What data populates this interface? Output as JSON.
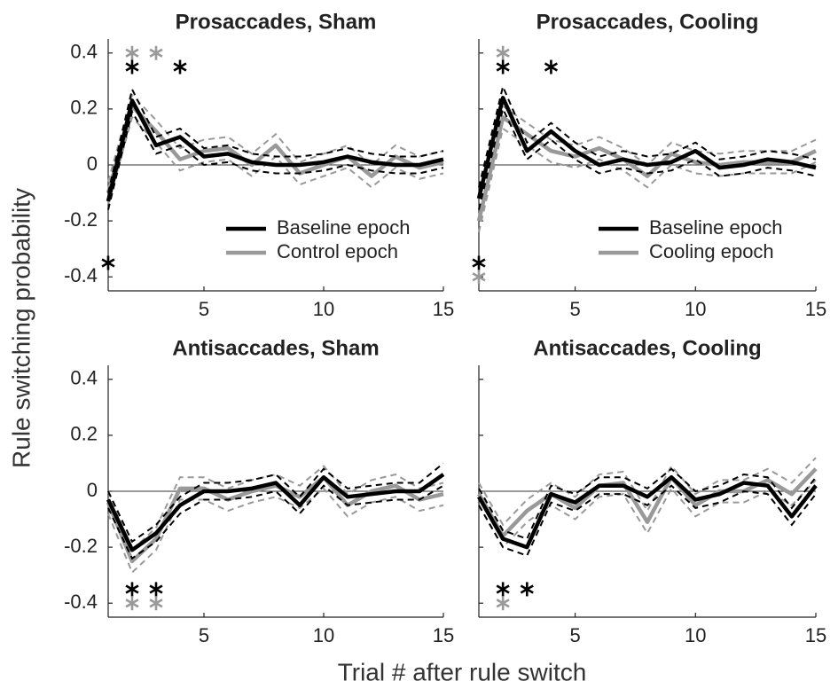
{
  "xlabel": "Trial # after rule switch",
  "ylabel": "Rule switching probability",
  "chart_data": [
    {
      "type": "line",
      "title": "Prosaccades, Sham",
      "x": [
        1,
        2,
        3,
        4,
        5,
        6,
        7,
        8,
        9,
        10,
        11,
        12,
        13,
        14,
        15
      ],
      "xlim": [
        1,
        15
      ],
      "xticks": [
        5,
        10,
        15
      ],
      "ylim": [
        -0.45,
        0.45
      ],
      "yticks": [
        -0.4,
        -0.2,
        0,
        0.2,
        0.4
      ],
      "show_ytick_labels": true,
      "legend": "lower right",
      "series": [
        {
          "name": "Baseline epoch",
          "color": "#000000",
          "values": [
            -0.13,
            0.23,
            0.07,
            0.1,
            0.03,
            0.04,
            0.01,
            0.0,
            0.0,
            0.01,
            0.03,
            0.01,
            0.0,
            0.0,
            0.02
          ],
          "errors": [
            0.03,
            0.04,
            0.03,
            0.03,
            0.03,
            0.03,
            0.03,
            0.03,
            0.03,
            0.03,
            0.03,
            0.03,
            0.03,
            0.03,
            0.03
          ]
        },
        {
          "name": "Control epoch",
          "color": "#999999",
          "values": [
            -0.1,
            0.21,
            0.12,
            0.02,
            0.05,
            0.06,
            0.0,
            0.07,
            -0.03,
            0.0,
            0.03,
            -0.04,
            0.03,
            -0.01,
            0.01
          ],
          "errors": [
            0.04,
            0.04,
            0.04,
            0.04,
            0.04,
            0.04,
            0.04,
            0.04,
            0.04,
            0.04,
            0.04,
            0.04,
            0.04,
            0.04,
            0.04
          ]
        }
      ],
      "markers": [
        {
          "x": 2,
          "y": 0.4,
          "color": "#999999"
        },
        {
          "x": 3,
          "y": 0.4,
          "color": "#999999"
        },
        {
          "x": 2,
          "y": 0.35,
          "color": "#000000"
        },
        {
          "x": 4,
          "y": 0.35,
          "color": "#000000"
        },
        {
          "x": 1,
          "y": -0.35,
          "color": "#000000"
        }
      ]
    },
    {
      "type": "line",
      "title": "Prosaccades, Cooling",
      "x": [
        1,
        2,
        3,
        4,
        5,
        6,
        7,
        8,
        9,
        10,
        11,
        12,
        13,
        14,
        15
      ],
      "xlim": [
        1,
        15
      ],
      "xticks": [
        5,
        10,
        15
      ],
      "ylim": [
        -0.45,
        0.45
      ],
      "yticks": [
        -0.4,
        -0.2,
        0,
        0.2,
        0.4
      ],
      "show_ytick_labels": false,
      "legend": "lower right",
      "series": [
        {
          "name": "Baseline epoch",
          "color": "#000000",
          "values": [
            -0.12,
            0.24,
            0.05,
            0.12,
            0.05,
            0.0,
            0.02,
            0.0,
            0.01,
            0.05,
            -0.01,
            0.0,
            0.02,
            0.01,
            -0.01
          ],
          "errors": [
            0.04,
            0.04,
            0.03,
            0.03,
            0.03,
            0.03,
            0.03,
            0.03,
            0.03,
            0.03,
            0.03,
            0.03,
            0.03,
            0.03,
            0.03
          ]
        },
        {
          "name": "Cooling epoch",
          "color": "#999999",
          "values": [
            -0.2,
            0.17,
            0.11,
            0.05,
            0.03,
            0.06,
            0.02,
            -0.04,
            0.04,
            0.01,
            0.0,
            0.01,
            0.01,
            0.01,
            0.05
          ],
          "errors": [
            0.04,
            0.04,
            0.04,
            0.04,
            0.04,
            0.04,
            0.04,
            0.04,
            0.04,
            0.04,
            0.04,
            0.04,
            0.04,
            0.04,
            0.04
          ]
        }
      ],
      "markers": [
        {
          "x": 2,
          "y": 0.4,
          "color": "#999999"
        },
        {
          "x": 2,
          "y": 0.35,
          "color": "#000000"
        },
        {
          "x": 4,
          "y": 0.35,
          "color": "#000000"
        },
        {
          "x": 1,
          "y": -0.35,
          "color": "#000000"
        },
        {
          "x": 1,
          "y": -0.4,
          "color": "#999999"
        }
      ]
    },
    {
      "type": "line",
      "title": "Antisaccades, Sham",
      "x": [
        1,
        2,
        3,
        4,
        5,
        6,
        7,
        8,
        9,
        10,
        11,
        12,
        13,
        14,
        15
      ],
      "xlim": [
        1,
        15
      ],
      "xticks": [
        5,
        10,
        15
      ],
      "ylim": [
        -0.45,
        0.45
      ],
      "yticks": [
        -0.4,
        -0.2,
        0,
        0.2,
        0.4
      ],
      "show_ytick_labels": true,
      "series": [
        {
          "color": "#000000",
          "values": [
            -0.03,
            -0.21,
            -0.15,
            -0.05,
            0.0,
            0.0,
            0.01,
            0.03,
            -0.05,
            0.05,
            -0.02,
            -0.01,
            0.0,
            0.0,
            0.06
          ],
          "errors": [
            0.03,
            0.03,
            0.03,
            0.03,
            0.03,
            0.03,
            0.03,
            0.03,
            0.03,
            0.03,
            0.03,
            0.03,
            0.03,
            0.03,
            0.04
          ]
        },
        {
          "color": "#999999",
          "values": [
            -0.04,
            -0.25,
            -0.17,
            0.01,
            0.01,
            -0.03,
            0.0,
            0.02,
            -0.02,
            0.05,
            -0.05,
            0.0,
            0.02,
            -0.03,
            -0.01
          ],
          "errors": [
            0.04,
            0.04,
            0.04,
            0.04,
            0.04,
            0.04,
            0.04,
            0.04,
            0.04,
            0.04,
            0.04,
            0.04,
            0.04,
            0.04,
            0.04
          ]
        }
      ],
      "markers": [
        {
          "x": 2,
          "y": -0.35,
          "color": "#000000"
        },
        {
          "x": 3,
          "y": -0.35,
          "color": "#000000"
        },
        {
          "x": 2,
          "y": -0.4,
          "color": "#999999"
        },
        {
          "x": 3,
          "y": -0.4,
          "color": "#999999"
        }
      ]
    },
    {
      "type": "line",
      "title": "Antisaccades, Cooling",
      "x": [
        1,
        2,
        3,
        4,
        5,
        6,
        7,
        8,
        9,
        10,
        11,
        12,
        13,
        14,
        15
      ],
      "xlim": [
        1,
        15
      ],
      "xticks": [
        5,
        10,
        15
      ],
      "ylim": [
        -0.45,
        0.45
      ],
      "yticks": [
        -0.4,
        -0.2,
        0,
        0.2,
        0.4
      ],
      "show_ytick_labels": false,
      "series": [
        {
          "color": "#000000",
          "values": [
            -0.02,
            -0.17,
            -0.2,
            -0.01,
            -0.04,
            0.02,
            0.02,
            -0.02,
            0.05,
            -0.03,
            -0.01,
            0.03,
            0.02,
            -0.09,
            0.02
          ],
          "errors": [
            0.03,
            0.03,
            0.03,
            0.03,
            0.03,
            0.03,
            0.03,
            0.03,
            0.03,
            0.03,
            0.03,
            0.03,
            0.03,
            0.03,
            0.03
          ]
        },
        {
          "color": "#999999",
          "values": [
            -0.01,
            -0.16,
            -0.07,
            -0.01,
            -0.06,
            0.02,
            0.03,
            -0.11,
            0.05,
            -0.05,
            0.0,
            0.0,
            0.04,
            -0.01,
            0.08
          ],
          "errors": [
            0.04,
            0.04,
            0.04,
            0.04,
            0.04,
            0.04,
            0.04,
            0.04,
            0.04,
            0.04,
            0.04,
            0.04,
            0.04,
            0.04,
            0.04
          ]
        }
      ],
      "markers": [
        {
          "x": 2,
          "y": -0.35,
          "color": "#000000"
        },
        {
          "x": 3,
          "y": -0.35,
          "color": "#000000"
        },
        {
          "x": 2,
          "y": -0.4,
          "color": "#999999"
        }
      ]
    }
  ]
}
